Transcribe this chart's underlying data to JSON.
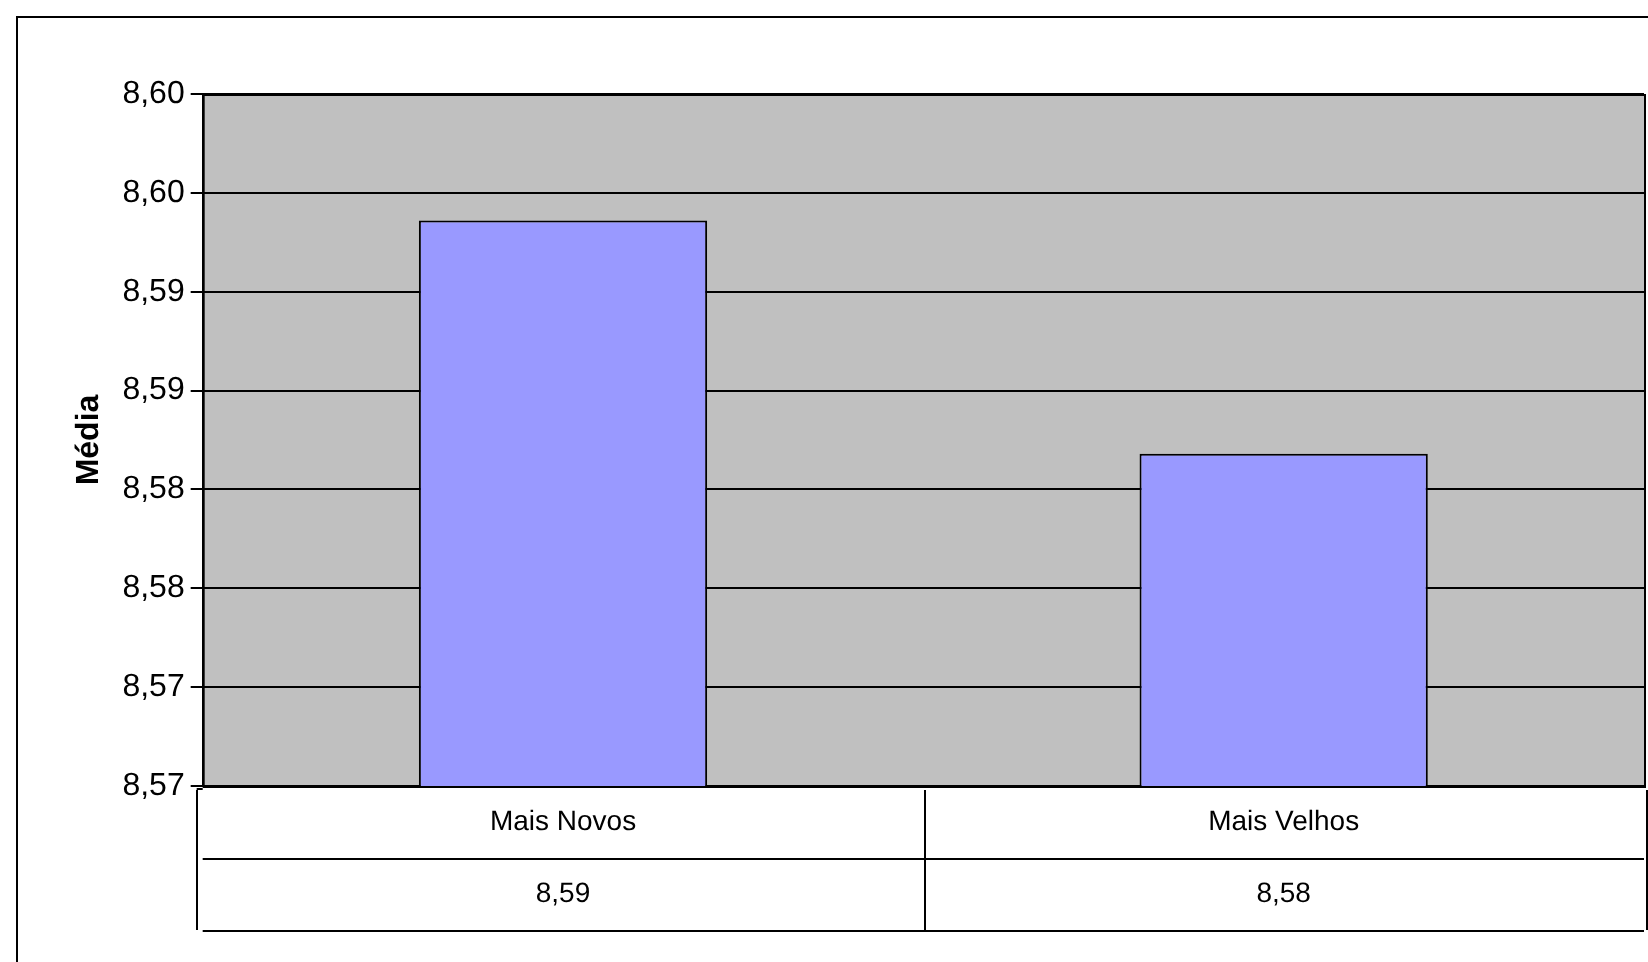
{
  "chart_data": {
    "type": "bar",
    "ylabel": "Média",
    "categories": [
      "Mais Novos",
      "Mais Velhos"
    ],
    "values": [
      8.5936,
      8.5818
    ],
    "color": "#9999ff",
    "value_labels": [
      "8,59",
      "8,58"
    ],
    "ylim": [
      8.565,
      8.6
    ],
    "yticks": [
      {
        "value": 8.565,
        "label": "8,57"
      },
      {
        "value": 8.57,
        "label": "8,57"
      },
      {
        "value": 8.575,
        "label": "8,58"
      },
      {
        "value": 8.58,
        "label": "8,58"
      },
      {
        "value": 8.585,
        "label": "8,59"
      },
      {
        "value": 8.59,
        "label": "8,59"
      },
      {
        "value": 8.595,
        "label": "8,60"
      },
      {
        "value": 8.6,
        "label": "8,60"
      }
    ],
    "grid": "y"
  }
}
